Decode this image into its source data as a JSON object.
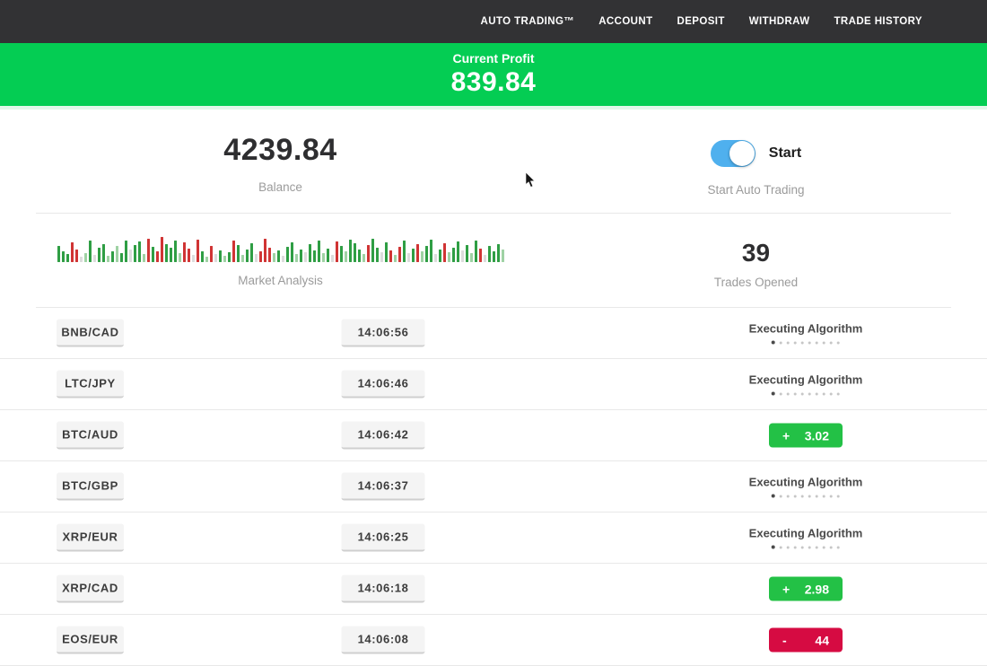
{
  "nav": {
    "items": [
      {
        "label": "AUTO TRADING™"
      },
      {
        "label": "ACCOUNT"
      },
      {
        "label": "DEPOSIT"
      },
      {
        "label": "WITHDRAW"
      },
      {
        "label": "TRADE HISTORY"
      }
    ]
  },
  "profit_banner": {
    "label": "Current Profit",
    "value": "839.84"
  },
  "balance": {
    "value": "4239.84",
    "label": "Balance"
  },
  "auto_trading": {
    "toggle_label": "Start",
    "caption": "Start Auto Trading",
    "toggle_on": true
  },
  "market_analysis": {
    "label": "Market Analysis",
    "bars": [
      [
        18,
        "g"
      ],
      [
        12,
        "g"
      ],
      [
        9,
        "g"
      ],
      [
        22,
        "r"
      ],
      [
        14,
        "r"
      ],
      [
        6,
        "e"
      ],
      [
        10,
        "G"
      ],
      [
        24,
        "g"
      ],
      [
        8,
        "e"
      ],
      [
        16,
        "g"
      ],
      [
        20,
        "g"
      ],
      [
        7,
        "G"
      ],
      [
        12,
        "g"
      ],
      [
        18,
        "G"
      ],
      [
        10,
        "g"
      ],
      [
        24,
        "g"
      ],
      [
        14,
        "e"
      ],
      [
        19,
        "g"
      ],
      [
        23,
        "g"
      ],
      [
        9,
        "G"
      ],
      [
        26,
        "r"
      ],
      [
        17,
        "g"
      ],
      [
        12,
        "r"
      ],
      [
        28,
        "r"
      ],
      [
        20,
        "g"
      ],
      [
        16,
        "g"
      ],
      [
        24,
        "g"
      ],
      [
        10,
        "G"
      ],
      [
        22,
        "r"
      ],
      [
        15,
        "r"
      ],
      [
        8,
        "e"
      ],
      [
        25,
        "r"
      ],
      [
        12,
        "g"
      ],
      [
        6,
        "G"
      ],
      [
        18,
        "r"
      ],
      [
        9,
        "e"
      ],
      [
        13,
        "g"
      ],
      [
        7,
        "G"
      ],
      [
        11,
        "g"
      ],
      [
        24,
        "r"
      ],
      [
        19,
        "g"
      ],
      [
        8,
        "G"
      ],
      [
        14,
        "g"
      ],
      [
        21,
        "g"
      ],
      [
        9,
        "e"
      ],
      [
        12,
        "r"
      ],
      [
        26,
        "r"
      ],
      [
        16,
        "r"
      ],
      [
        10,
        "G"
      ],
      [
        13,
        "g"
      ],
      [
        7,
        "e"
      ],
      [
        17,
        "g"
      ],
      [
        22,
        "g"
      ],
      [
        9,
        "G"
      ],
      [
        14,
        "g"
      ],
      [
        11,
        "e"
      ],
      [
        20,
        "g"
      ],
      [
        13,
        "g"
      ],
      [
        24,
        "g"
      ],
      [
        10,
        "G"
      ],
      [
        15,
        "g"
      ],
      [
        8,
        "e"
      ],
      [
        23,
        "r"
      ],
      [
        18,
        "g"
      ],
      [
        12,
        "G"
      ],
      [
        25,
        "g"
      ],
      [
        21,
        "g"
      ],
      [
        14,
        "g"
      ],
      [
        9,
        "G"
      ],
      [
        19,
        "r"
      ],
      [
        26,
        "g"
      ],
      [
        16,
        "g"
      ],
      [
        11,
        "e"
      ],
      [
        22,
        "g"
      ],
      [
        13,
        "r"
      ],
      [
        8,
        "G"
      ],
      [
        17,
        "r"
      ],
      [
        24,
        "g"
      ],
      [
        10,
        "e"
      ],
      [
        15,
        "g"
      ],
      [
        20,
        "r"
      ],
      [
        12,
        "G"
      ],
      [
        18,
        "g"
      ],
      [
        25,
        "g"
      ],
      [
        9,
        "e"
      ],
      [
        14,
        "g"
      ],
      [
        21,
        "r"
      ],
      [
        11,
        "G"
      ],
      [
        16,
        "g"
      ],
      [
        23,
        "g"
      ],
      [
        13,
        "e"
      ],
      [
        19,
        "g"
      ],
      [
        10,
        "G"
      ],
      [
        24,
        "g"
      ],
      [
        15,
        "r"
      ],
      [
        8,
        "e"
      ],
      [
        18,
        "g"
      ],
      [
        12,
        "g"
      ],
      [
        20,
        "g"
      ],
      [
        14,
        "G"
      ]
    ]
  },
  "trades_opened": {
    "value": "39",
    "label": "Trades Opened"
  },
  "trades": [
    {
      "pair": "BNB/CAD",
      "time": "14:06:56",
      "status": {
        "type": "executing",
        "label": "Executing Algorithm",
        "dots": 10,
        "active_dot": 0
      }
    },
    {
      "pair": "LTC/JPY",
      "time": "14:06:46",
      "status": {
        "type": "executing",
        "label": "Executing Algorithm",
        "dots": 10,
        "active_dot": 0
      }
    },
    {
      "pair": "BTC/AUD",
      "time": "14:06:42",
      "status": {
        "type": "profit",
        "sign": "+",
        "amount": "3.02"
      }
    },
    {
      "pair": "BTC/GBP",
      "time": "14:06:37",
      "status": {
        "type": "executing",
        "label": "Executing Algorithm",
        "dots": 10,
        "active_dot": 0
      }
    },
    {
      "pair": "XRP/EUR",
      "time": "14:06:25",
      "status": {
        "type": "executing",
        "label": "Executing Algorithm",
        "dots": 10,
        "active_dot": 0
      }
    },
    {
      "pair": "XRP/CAD",
      "time": "14:06:18",
      "status": {
        "type": "profit",
        "sign": "+",
        "amount": "2.98"
      }
    },
    {
      "pair": "EOS/EUR",
      "time": "14:06:08",
      "status": {
        "type": "loss",
        "sign": "-",
        "amount": "44"
      }
    }
  ],
  "colors": {
    "nav_bg": "#323234",
    "banner_green": "#04cd53",
    "badge_green": "#23c146",
    "badge_red": "#d60b42",
    "toggle_blue": "#4fb0ee"
  }
}
